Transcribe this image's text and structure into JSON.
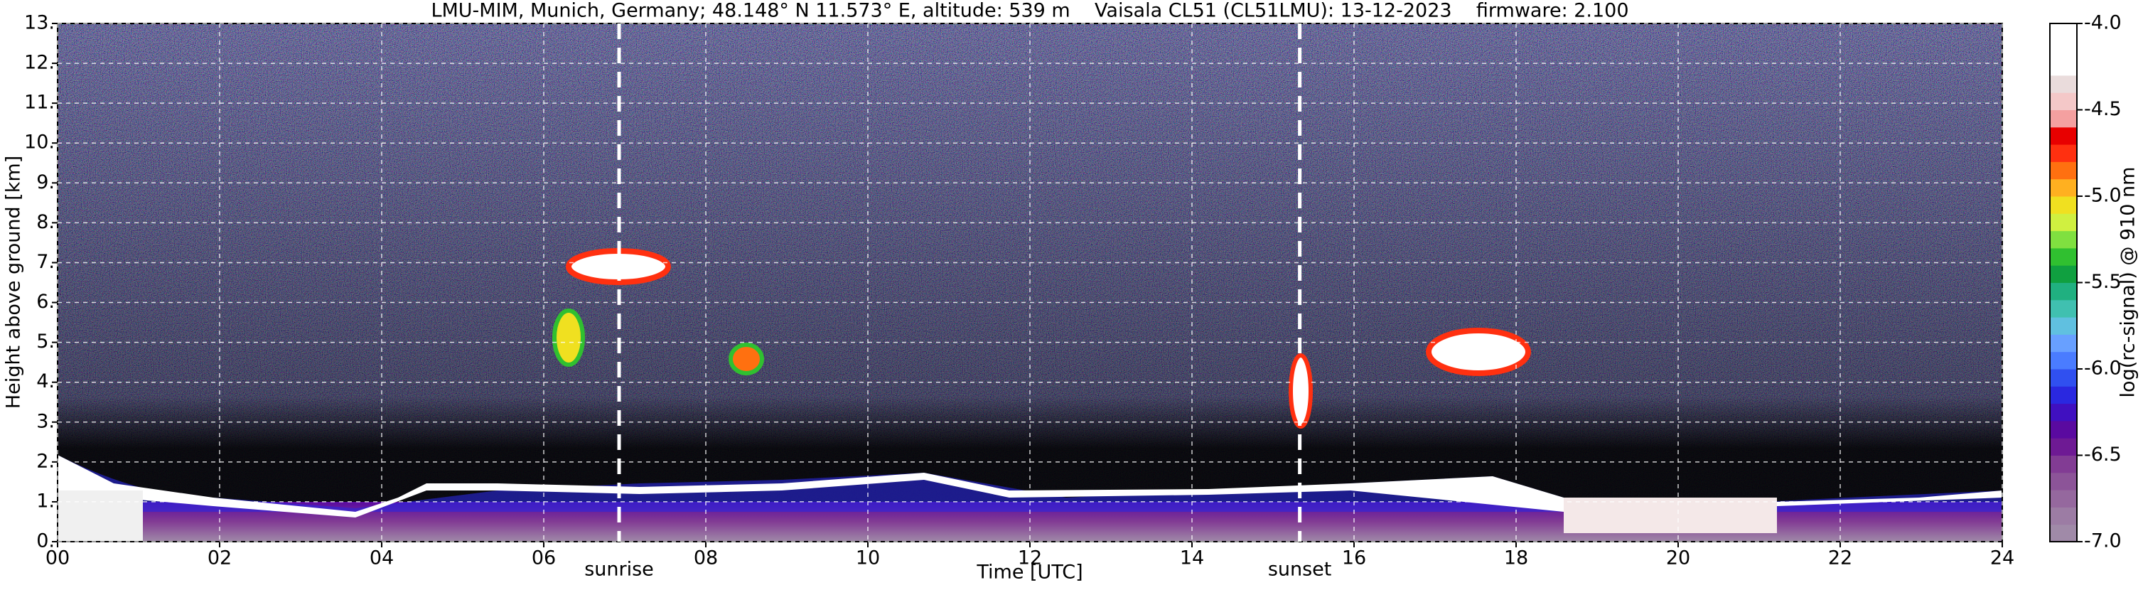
{
  "chart_data": {
    "type": "heatmap",
    "title": "LMU-MIM, Munich, Germany; 48.148° N 11.573° E, altitude: 539 m    Vaisala CL51 (CL51LMU): 13-12-2023    firmware: 2.100",
    "x_label": "Time [UTC]",
    "y_label": "Height above ground [km]",
    "colorbar_label": "log(rc-signal) @ 910 nm",
    "xlim": [
      0,
      24
    ],
    "xticks": [
      {
        "value": 0,
        "label": "00"
      },
      {
        "value": 2,
        "label": "02"
      },
      {
        "value": 4,
        "label": "04"
      },
      {
        "value": 6,
        "label": "06"
      },
      {
        "value": 8,
        "label": "08"
      },
      {
        "value": 10,
        "label": "10"
      },
      {
        "value": 12,
        "label": "12"
      },
      {
        "value": 14,
        "label": "14"
      },
      {
        "value": 16,
        "label": "16"
      },
      {
        "value": 18,
        "label": "18"
      },
      {
        "value": 20,
        "label": "20"
      },
      {
        "value": 22,
        "label": "22"
      },
      {
        "value": 24,
        "label": "24"
      }
    ],
    "ylim": [
      0,
      13
    ],
    "yticks": [
      {
        "value": 0,
        "label": "0."
      },
      {
        "value": 1,
        "label": "1."
      },
      {
        "value": 2,
        "label": "2."
      },
      {
        "value": 3,
        "label": "3."
      },
      {
        "value": 4,
        "label": "4."
      },
      {
        "value": 5,
        "label": "5."
      },
      {
        "value": 6,
        "label": "6."
      },
      {
        "value": 7,
        "label": "7."
      },
      {
        "value": 8,
        "label": "8."
      },
      {
        "value": 9,
        "label": "9."
      },
      {
        "value": 10,
        "label": "10."
      },
      {
        "value": 11,
        "label": "11."
      },
      {
        "value": 12,
        "label": "12."
      },
      {
        "value": 13,
        "label": "13."
      }
    ],
    "grid": true,
    "clim": [
      -7.0,
      -4.0
    ],
    "cticks": [
      {
        "value": -7.0,
        "label": "-7.0"
      },
      {
        "value": -6.5,
        "label": "-6.5"
      },
      {
        "value": -6.0,
        "label": "-6.0"
      },
      {
        "value": -5.5,
        "label": "-5.5"
      },
      {
        "value": -5.0,
        "label": "-5.0"
      },
      {
        "value": -4.5,
        "label": "-4.5"
      },
      {
        "value": -4.0,
        "label": "-4.0"
      }
    ],
    "colormap": [
      "#a08aa8",
      "#9c7ca4",
      "#95689e",
      "#8c5498",
      "#823c94",
      "#6e1a94",
      "#5a0aa0",
      "#4010c0",
      "#2a28e0",
      "#3050f0",
      "#4a7cff",
      "#68a0ff",
      "#60c0e0",
      "#40c0b0",
      "#20b080",
      "#10a040",
      "#30c030",
      "#80e040",
      "#d0f040",
      "#f0e020",
      "#ffb020",
      "#ff7010",
      "#ff3010",
      "#e80000",
      "#f4a0a0",
      "#f4c8c8",
      "#eadcdc",
      "#ffffff",
      "#ffffff",
      "#ffffff"
    ],
    "annotations": [
      {
        "text": "sunrise",
        "x": 6.93
      },
      {
        "text": "sunset",
        "x": 15.33
      }
    ]
  }
}
